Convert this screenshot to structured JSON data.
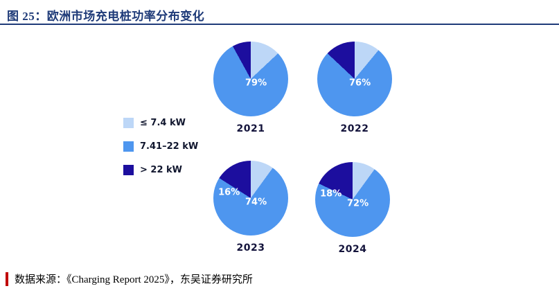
{
  "header": {
    "title": "图 25：欧洲市场充电桩功率分布变化"
  },
  "footer": {
    "source": "数据来源：《Charging Report 2025》，东吴证券研究所"
  },
  "colors": {
    "title": "#1E3A78",
    "rule": "#1E3A78",
    "accent_red": "#C00000",
    "pie_light_blue": "#BDD7F7",
    "pie_mid_blue": "#4E96EF",
    "pie_navy": "#1C0E9E"
  },
  "chart_data": {
    "type": "pie",
    "title": "欧洲市场充电桩功率分布变化",
    "legend_position": "left",
    "legend": [
      {
        "label": "≤ 7.4 kW",
        "color": "#BDD7F7"
      },
      {
        "label": "7.41–22 kW",
        "color": "#4E96EF"
      },
      {
        "label": "> 22 kW",
        "color": "#1C0E9E"
      }
    ],
    "pies": [
      {
        "year": "2021",
        "values": [
          13,
          79,
          8
        ],
        "shown_labels": [
          {
            "series": 1,
            "text": "79%"
          }
        ]
      },
      {
        "year": "2022",
        "values": [
          11,
          76,
          13
        ],
        "shown_labels": [
          {
            "series": 1,
            "text": "76%"
          }
        ]
      },
      {
        "year": "2023",
        "values": [
          10,
          74,
          16
        ],
        "shown_labels": [
          {
            "series": 1,
            "text": "74%"
          },
          {
            "series": 2,
            "text": "16%"
          }
        ]
      },
      {
        "year": "2024",
        "values": [
          10,
          72,
          18
        ],
        "shown_labels": [
          {
            "series": 1,
            "text": "72%"
          },
          {
            "series": 2,
            "text": "18%"
          }
        ]
      }
    ]
  }
}
